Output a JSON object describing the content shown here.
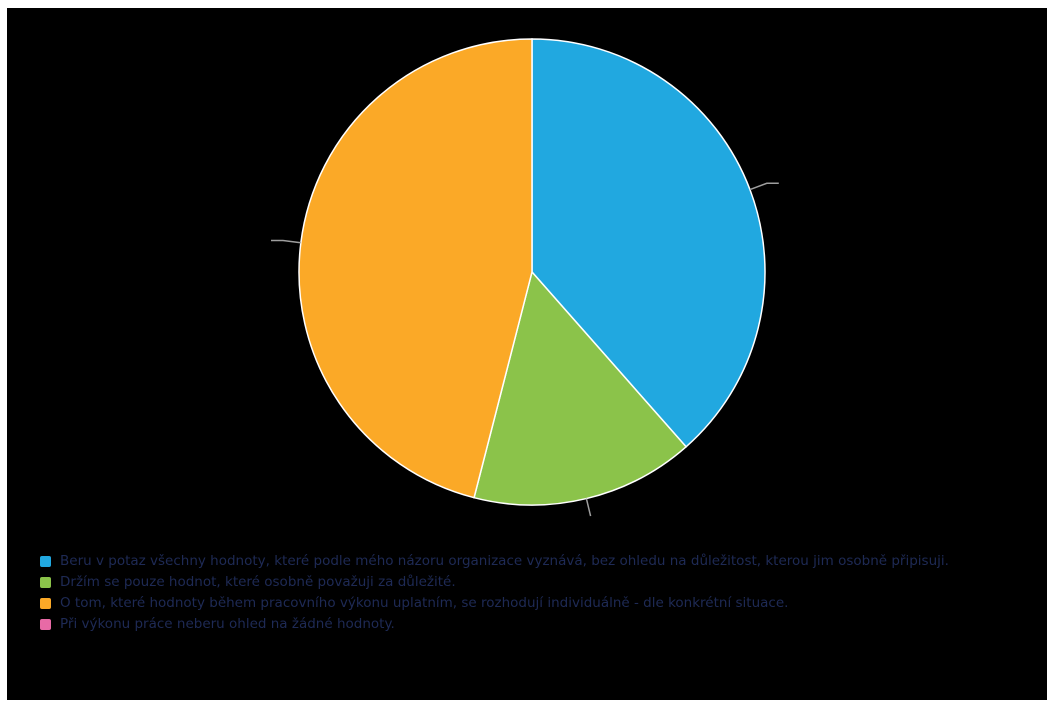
{
  "chart_data": {
    "type": "pie",
    "title": "",
    "categories": [
      "Beru v potaz všechny hodnoty, které podle mého názoru organizace vyznává, bez ohledu na důležitost, kterou jim osobně připisuji.",
      "Držím se pouze hodnot, které osobně považuji za důležité.",
      "O tom, které hodnoty během pracovního výkonu uplatním, se rozhodují individuálně - dle konkrétní situace.",
      "Při výkonu práce neberu ohled na žádné hodnoty."
    ],
    "values": [
      38.5,
      15.5,
      46,
      0
    ],
    "colors": [
      "#21a8e0",
      "#8bc34a",
      "#fba927",
      "#e86aa6"
    ],
    "legend_position": "bottom-left",
    "leader_line_color": "#9e9e9e",
    "background": "#000000"
  }
}
